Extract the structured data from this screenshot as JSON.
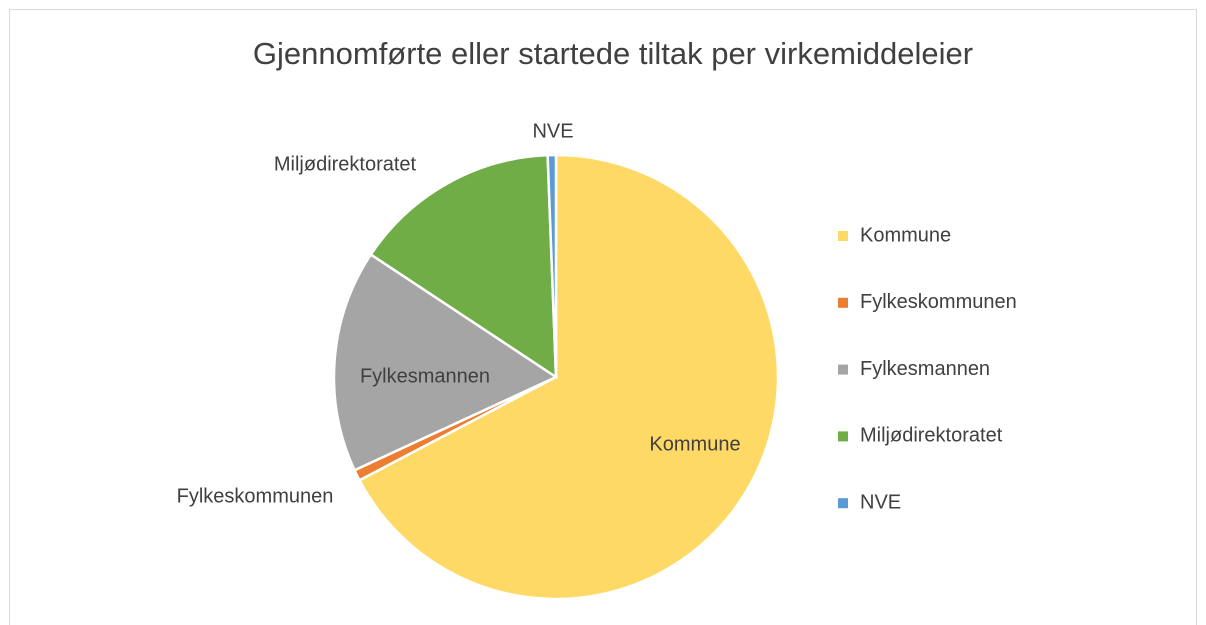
{
  "chart_data": {
    "type": "pie",
    "title": "Gjennomførte eller startede tiltak per virkemiddeleier",
    "categories": [
      "Kommune",
      "Fylkeskommunen",
      "Fylkesmannen",
      "Miljødirektoratet",
      "NVE"
    ],
    "values": [
      67.3,
      0.8,
      16.2,
      15.1,
      0.6
    ],
    "colors": [
      "#FFD966",
      "#ED7D31",
      "#A5A5A5",
      "#70AD47",
      "#5B9BD5"
    ],
    "legend": "right"
  }
}
